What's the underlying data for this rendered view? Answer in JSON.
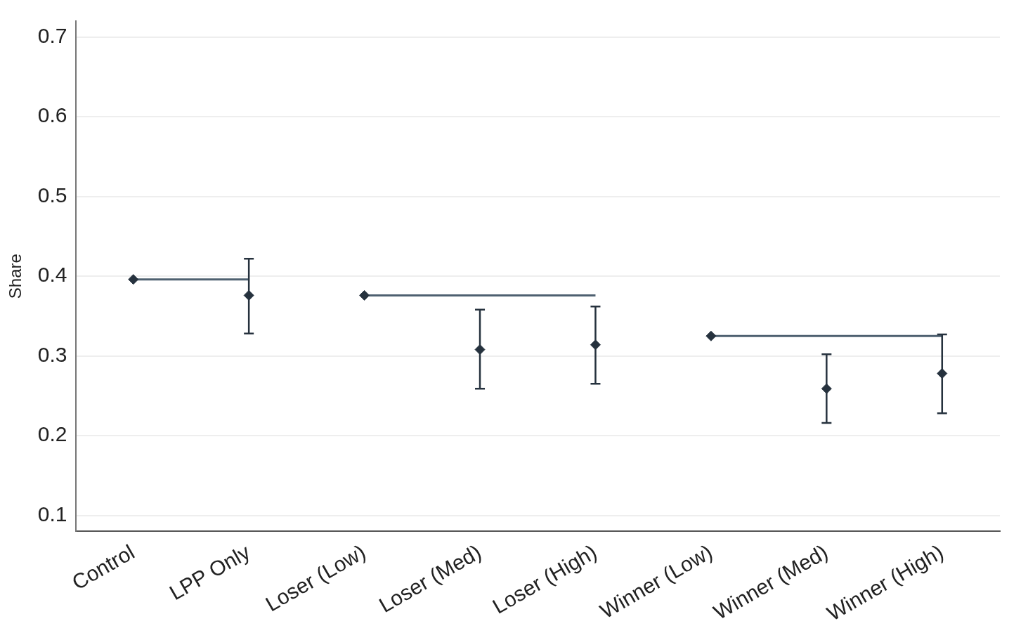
{
  "chart_data": {
    "type": "scatter",
    "ylabel": "Share",
    "categories": [
      "Control",
      "LPP Only",
      "Loser (Low)",
      "Loser (Med)",
      "Loser (High)",
      "Winner (Low)",
      "Winner (Med)",
      "Winner (High)"
    ],
    "series": [
      {
        "type": "line",
        "marker": "none",
        "color": "#4e6070",
        "values": [
          0.396,
          0.396,
          null,
          null,
          null,
          null,
          null,
          null
        ]
      },
      {
        "type": "line",
        "marker": "none",
        "color": "#4e6070",
        "values": [
          null,
          null,
          0.376,
          0.376,
          0.376,
          null,
          null,
          null
        ]
      },
      {
        "type": "line",
        "marker": "none",
        "color": "#4e6070",
        "values": [
          null,
          null,
          null,
          null,
          null,
          0.325,
          0.325,
          0.325
        ]
      },
      {
        "color": "#26323e",
        "values": [
          0.396,
          0.376,
          0.376,
          0.308,
          0.314,
          0.325,
          0.259,
          0.278
        ],
        "errors": [
          null,
          [
            0.328,
            0.422
          ],
          null,
          [
            0.259,
            0.358
          ],
          [
            0.265,
            0.362
          ],
          null,
          [
            0.216,
            0.302
          ],
          [
            0.228,
            0.327
          ]
        ]
      }
    ],
    "ylim": [
      0.08,
      0.72
    ],
    "yticks": [
      0.1,
      0.2,
      0.3,
      0.4,
      0.5,
      0.6,
      0.7
    ],
    "grid": "y",
    "legend": false,
    "marker": "diamond"
  }
}
